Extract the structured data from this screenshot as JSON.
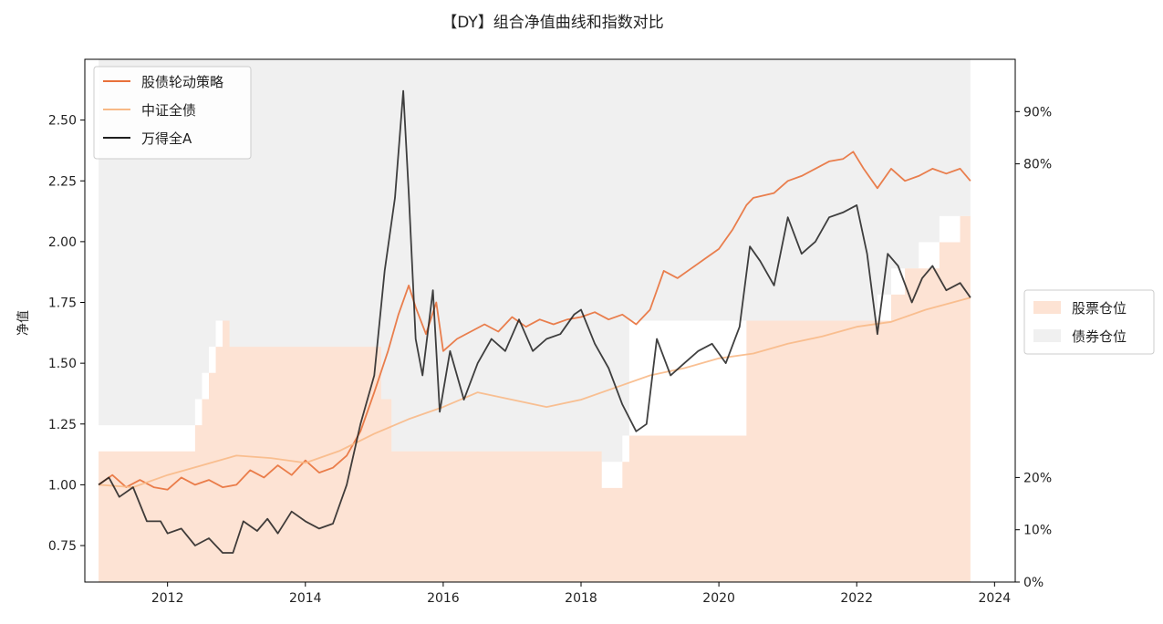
{
  "chart_data": {
    "type": "line",
    "title": "【DY】组合净值曲线和指数对比",
    "xlabel": "",
    "ylabel": "净值",
    "xlim": [
      2010.8,
      2024.3
    ],
    "ylim": [
      0.6,
      2.75
    ],
    "y2lim": [
      0,
      1.0
    ],
    "grid": false,
    "legend_position_main": "upper-left",
    "legend_position_right": "outside-right",
    "x_ticks": [
      2012,
      2014,
      2016,
      2018,
      2020,
      2022,
      2024
    ],
    "x_tick_labels": [
      "2012",
      "2014",
      "2016",
      "2018",
      "2020",
      "2022",
      "2024"
    ],
    "y_ticks": [
      0.75,
      1.0,
      1.25,
      1.5,
      1.75,
      2.0,
      2.25,
      2.5
    ],
    "y_tick_labels": [
      "0.75",
      "1.00",
      "1.25",
      "1.50",
      "1.75",
      "2.00",
      "2.25",
      "2.50"
    ],
    "y2_ticks": [
      0,
      0.1,
      0.2,
      0.8,
      0.9
    ],
    "y2_tick_labels": [
      "0%",
      "10%",
      "20%",
      "80%",
      "90%"
    ],
    "series": [
      {
        "name": "股债轮动策略",
        "color": "#e8713b",
        "x": [
          2011.0,
          2011.2,
          2011.4,
          2011.6,
          2011.8,
          2012.0,
          2012.2,
          2012.4,
          2012.6,
          2012.8,
          2013.0,
          2013.2,
          2013.4,
          2013.6,
          2013.8,
          2014.0,
          2014.2,
          2014.4,
          2014.6,
          2014.8,
          2015.0,
          2015.2,
          2015.35,
          2015.5,
          2015.6,
          2015.75,
          2015.9,
          2016.0,
          2016.2,
          2016.4,
          2016.6,
          2016.8,
          2017.0,
          2017.2,
          2017.4,
          2017.6,
          2017.8,
          2018.0,
          2018.2,
          2018.4,
          2018.6,
          2018.8,
          2019.0,
          2019.2,
          2019.4,
          2019.6,
          2019.8,
          2020.0,
          2020.2,
          2020.4,
          2020.5,
          2020.8,
          2021.0,
          2021.2,
          2021.4,
          2021.6,
          2021.8,
          2021.95,
          2022.1,
          2022.3,
          2022.5,
          2022.7,
          2022.9,
          2023.1,
          2023.3,
          2023.5,
          2023.65
        ],
        "values": [
          1.0,
          1.04,
          0.99,
          1.02,
          0.99,
          0.98,
          1.03,
          1.0,
          1.02,
          0.99,
          1.0,
          1.06,
          1.03,
          1.08,
          1.04,
          1.1,
          1.05,
          1.07,
          1.12,
          1.22,
          1.38,
          1.55,
          1.7,
          1.82,
          1.73,
          1.62,
          1.75,
          1.55,
          1.6,
          1.63,
          1.66,
          1.63,
          1.69,
          1.65,
          1.68,
          1.66,
          1.68,
          1.69,
          1.71,
          1.68,
          1.7,
          1.66,
          1.72,
          1.88,
          1.85,
          1.89,
          1.93,
          1.97,
          2.05,
          2.15,
          2.18,
          2.2,
          2.25,
          2.27,
          2.3,
          2.33,
          2.34,
          2.37,
          2.3,
          2.22,
          2.3,
          2.25,
          2.27,
          2.3,
          2.28,
          2.3,
          2.25
        ]
      },
      {
        "name": "中证全债",
        "color": "#f8b987",
        "x": [
          2011.0,
          2011.5,
          2012.0,
          2012.5,
          2013.0,
          2013.5,
          2014.0,
          2014.5,
          2015.0,
          2015.5,
          2016.0,
          2016.5,
          2017.0,
          2017.5,
          2018.0,
          2018.5,
          2019.0,
          2019.5,
          2020.0,
          2020.5,
          2021.0,
          2021.5,
          2022.0,
          2022.5,
          2023.0,
          2023.65
        ],
        "values": [
          1.0,
          0.99,
          1.04,
          1.08,
          1.12,
          1.11,
          1.09,
          1.14,
          1.21,
          1.27,
          1.32,
          1.38,
          1.35,
          1.32,
          1.35,
          1.4,
          1.45,
          1.48,
          1.52,
          1.54,
          1.58,
          1.61,
          1.65,
          1.67,
          1.72,
          1.77
        ]
      },
      {
        "name": "万得全A",
        "color": "#1f1f1f",
        "x": [
          2011.0,
          2011.15,
          2011.3,
          2011.5,
          2011.7,
          2011.9,
          2012.0,
          2012.2,
          2012.4,
          2012.6,
          2012.8,
          2012.95,
          2013.1,
          2013.3,
          2013.45,
          2013.6,
          2013.8,
          2014.0,
          2014.2,
          2014.4,
          2014.6,
          2014.8,
          2015.0,
          2015.15,
          2015.3,
          2015.42,
          2015.5,
          2015.6,
          2015.7,
          2015.85,
          2015.95,
          2016.1,
          2016.3,
          2016.5,
          2016.7,
          2016.9,
          2017.1,
          2017.3,
          2017.5,
          2017.7,
          2017.9,
          2018.0,
          2018.2,
          2018.4,
          2018.6,
          2018.8,
          2018.95,
          2019.1,
          2019.3,
          2019.5,
          2019.7,
          2019.9,
          2020.1,
          2020.3,
          2020.45,
          2020.6,
          2020.8,
          2021.0,
          2021.2,
          2021.4,
          2021.6,
          2021.8,
          2022.0,
          2022.15,
          2022.3,
          2022.45,
          2022.6,
          2022.8,
          2022.95,
          2023.1,
          2023.3,
          2023.5,
          2023.65
        ],
        "values": [
          1.0,
          1.03,
          0.95,
          0.99,
          0.85,
          0.85,
          0.8,
          0.82,
          0.75,
          0.78,
          0.72,
          0.72,
          0.85,
          0.81,
          0.86,
          0.8,
          0.89,
          0.85,
          0.82,
          0.84,
          1.0,
          1.25,
          1.45,
          1.88,
          2.18,
          2.62,
          2.2,
          1.6,
          1.45,
          1.8,
          1.3,
          1.55,
          1.35,
          1.5,
          1.6,
          1.55,
          1.68,
          1.55,
          1.6,
          1.62,
          1.7,
          1.72,
          1.58,
          1.48,
          1.33,
          1.22,
          1.25,
          1.6,
          1.45,
          1.5,
          1.55,
          1.58,
          1.5,
          1.65,
          1.98,
          1.92,
          1.82,
          2.1,
          1.95,
          2.0,
          2.1,
          2.12,
          2.15,
          1.95,
          1.62,
          1.95,
          1.9,
          1.75,
          1.85,
          1.9,
          1.8,
          1.83,
          1.77
        ]
      }
    ],
    "fills": [
      {
        "name": "股票仓位",
        "color": "#fde3d4",
        "axis": "right",
        "x": [
          2011.0,
          2012.4,
          2012.5,
          2012.6,
          2012.7,
          2012.8,
          2012.9,
          2015.1,
          2015.25,
          2018.3,
          2018.6,
          2018.7,
          2020.4,
          2022.3,
          2022.5,
          2022.7,
          2022.9,
          2023.2,
          2023.5,
          2023.65
        ],
        "values": [
          0.25,
          0.3,
          0.35,
          0.4,
          0.45,
          0.5,
          0.45,
          0.35,
          0.25,
          0.18,
          0.23,
          0.28,
          0.5,
          0.5,
          0.55,
          0.6,
          0.6,
          0.65,
          0.7,
          0.7
        ]
      },
      {
        "name": "债券仓位",
        "color": "#f0f0f0",
        "axis": "right"
      }
    ]
  }
}
